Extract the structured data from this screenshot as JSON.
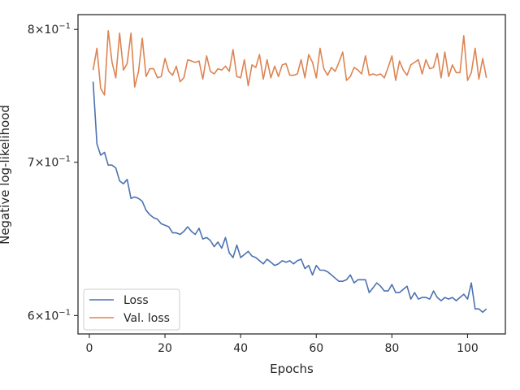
{
  "chart_data": {
    "type": "line",
    "xlabel": "Epochs",
    "ylabel": "Negative log-likelihood",
    "yscale": "log",
    "xlim": [
      -3,
      110
    ],
    "ylim": [
      0.589,
      0.812
    ],
    "x_ticks": [
      0,
      20,
      40,
      60,
      80,
      100
    ],
    "x_tick_labels": [
      "0",
      "20",
      "40",
      "60",
      "80",
      "100"
    ],
    "y_ticks": [
      {
        "value": 0.8,
        "base": "8",
        "mid": "×10",
        "exp": "−1"
      },
      {
        "value": 0.7,
        "base": "7",
        "mid": "×10",
        "exp": "−1"
      },
      {
        "value": 0.6,
        "base": "6",
        "mid": "×10",
        "exp": "−1"
      }
    ],
    "grid": false,
    "legend_position": "lower-left",
    "series": [
      {
        "name": "Loss",
        "color": "#4c72b0",
        "x": [
          1,
          2,
          3,
          4,
          5,
          6,
          7,
          8,
          9,
          10,
          11,
          12,
          13,
          14,
          15,
          16,
          17,
          18,
          19,
          20,
          21,
          22,
          23,
          24,
          25,
          26,
          27,
          28,
          29,
          30,
          31,
          32,
          33,
          34,
          35,
          36,
          37,
          38,
          39,
          40,
          41,
          42,
          43,
          44,
          45,
          46,
          47,
          48,
          49,
          50,
          51,
          52,
          53,
          54,
          55,
          56,
          57,
          58,
          59,
          60,
          61,
          62,
          63,
          64,
          65,
          66,
          67,
          68,
          69,
          70,
          71,
          72,
          73,
          74,
          75,
          76,
          77,
          78,
          79,
          80,
          81,
          82,
          83,
          84,
          85,
          86,
          87,
          88,
          89,
          90,
          91,
          92,
          93,
          94,
          95,
          96,
          97,
          98,
          99,
          100,
          101,
          102,
          103,
          104,
          105
        ],
        "y": [
          0.759,
          0.713,
          0.705,
          0.707,
          0.698,
          0.698,
          0.696,
          0.687,
          0.685,
          0.688,
          0.675,
          0.676,
          0.675,
          0.673,
          0.667,
          0.664,
          0.662,
          0.661,
          0.658,
          0.657,
          0.656,
          0.652,
          0.652,
          0.651,
          0.653,
          0.656,
          0.653,
          0.651,
          0.655,
          0.648,
          0.649,
          0.647,
          0.643,
          0.646,
          0.642,
          0.649,
          0.639,
          0.636,
          0.644,
          0.636,
          0.638,
          0.64,
          0.637,
          0.636,
          0.634,
          0.632,
          0.635,
          0.633,
          0.631,
          0.632,
          0.634,
          0.633,
          0.634,
          0.632,
          0.634,
          0.635,
          0.629,
          0.631,
          0.625,
          0.631,
          0.628,
          0.628,
          0.627,
          0.625,
          0.623,
          0.621,
          0.621,
          0.622,
          0.625,
          0.62,
          0.622,
          0.622,
          0.622,
          0.614,
          0.617,
          0.62,
          0.618,
          0.615,
          0.615,
          0.619,
          0.614,
          0.614,
          0.616,
          0.618,
          0.61,
          0.614,
          0.61,
          0.611,
          0.611,
          0.61,
          0.615,
          0.611,
          0.609,
          0.611,
          0.61,
          0.611,
          0.609,
          0.611,
          0.613,
          0.61,
          0.62,
          0.604,
          0.604,
          0.602,
          0.604
        ]
      },
      {
        "name": "Val. loss",
        "color": "#dd8452",
        "x": [
          1,
          2,
          3,
          4,
          5,
          6,
          7,
          8,
          9,
          10,
          11,
          12,
          13,
          14,
          15,
          16,
          17,
          18,
          19,
          20,
          21,
          22,
          23,
          24,
          25,
          26,
          27,
          28,
          29,
          30,
          31,
          32,
          33,
          34,
          35,
          36,
          37,
          38,
          39,
          40,
          41,
          42,
          43,
          44,
          45,
          46,
          47,
          48,
          49,
          50,
          51,
          52,
          53,
          54,
          55,
          56,
          57,
          58,
          59,
          60,
          61,
          62,
          63,
          64,
          65,
          66,
          67,
          68,
          69,
          70,
          71,
          72,
          73,
          74,
          75,
          76,
          77,
          78,
          79,
          80,
          81,
          82,
          83,
          84,
          85,
          86,
          87,
          88,
          89,
          90,
          91,
          92,
          93,
          94,
          95,
          96,
          97,
          98,
          99,
          100,
          101,
          102,
          103,
          104,
          105
        ],
        "y": [
          0.768,
          0.785,
          0.754,
          0.749,
          0.799,
          0.774,
          0.762,
          0.797,
          0.768,
          0.773,
          0.797,
          0.755,
          0.767,
          0.793,
          0.763,
          0.769,
          0.769,
          0.762,
          0.763,
          0.777,
          0.767,
          0.764,
          0.771,
          0.759,
          0.762,
          0.776,
          0.775,
          0.774,
          0.775,
          0.761,
          0.779,
          0.767,
          0.765,
          0.769,
          0.768,
          0.771,
          0.767,
          0.784,
          0.763,
          0.762,
          0.776,
          0.756,
          0.772,
          0.77,
          0.78,
          0.761,
          0.776,
          0.762,
          0.771,
          0.763,
          0.772,
          0.773,
          0.764,
          0.764,
          0.765,
          0.776,
          0.762,
          0.78,
          0.774,
          0.762,
          0.785,
          0.769,
          0.764,
          0.77,
          0.767,
          0.774,
          0.782,
          0.76,
          0.763,
          0.77,
          0.768,
          0.765,
          0.779,
          0.764,
          0.765,
          0.764,
          0.765,
          0.762,
          0.77,
          0.779,
          0.76,
          0.775,
          0.768,
          0.764,
          0.772,
          0.774,
          0.776,
          0.765,
          0.776,
          0.769,
          0.77,
          0.781,
          0.762,
          0.782,
          0.763,
          0.772,
          0.766,
          0.766,
          0.795,
          0.76,
          0.766,
          0.785,
          0.761,
          0.777,
          0.762
        ]
      }
    ]
  }
}
